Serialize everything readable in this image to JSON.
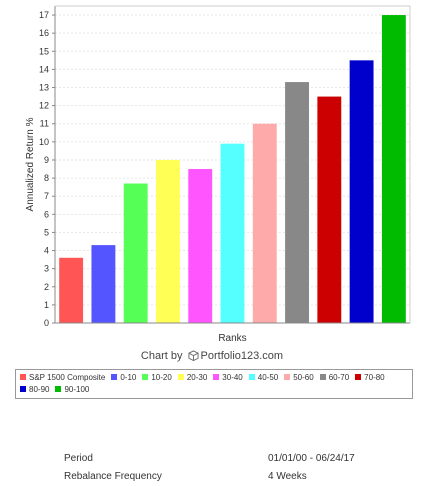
{
  "chart_data": {
    "type": "bar",
    "xlabel": "Ranks",
    "ylabel": "Annualized Return %",
    "ylim": [
      0,
      17.5
    ],
    "yticks": [
      0,
      1,
      2,
      3,
      4,
      5,
      6,
      7,
      8,
      9,
      10,
      11,
      12,
      13,
      14,
      15,
      16,
      17
    ],
    "grid": true,
    "legend_position": "bottom",
    "categories": [
      "S&P 1500 Composite",
      "0-10",
      "10-20",
      "20-30",
      "30-40",
      "40-50",
      "50-60",
      "60-70",
      "70-80",
      "80-90",
      "90-100"
    ],
    "values": [
      3.6,
      4.3,
      7.7,
      9.0,
      8.5,
      9.9,
      11.0,
      13.3,
      12.5,
      14.5,
      17.0
    ],
    "colors": [
      "#ff5555",
      "#5555ff",
      "#55ff55",
      "#ffff55",
      "#ff55ff",
      "#55ffff",
      "#ffaaaa",
      "#888888",
      "#cc0000",
      "#0000cc",
      "#00bb00"
    ]
  },
  "credit": {
    "prefix": "Chart by",
    "brand": "Portfolio123.com"
  },
  "summary": [
    {
      "label": "Period",
      "value": "01/01/00 - 06/24/17"
    },
    {
      "label": "Rebalance Frequency",
      "value": "4 Weeks"
    }
  ]
}
